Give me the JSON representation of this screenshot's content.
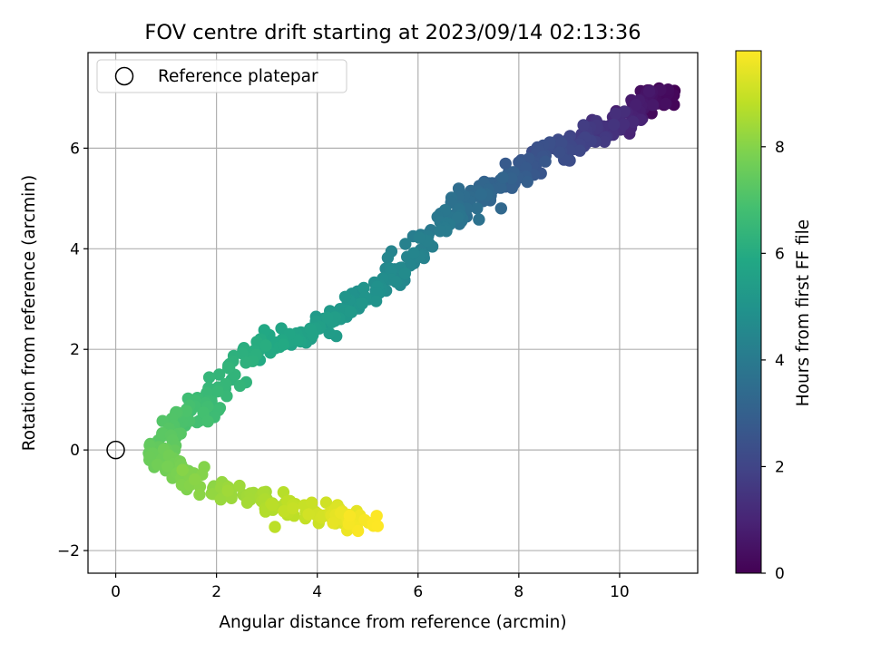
{
  "chart_data": {
    "type": "scatter",
    "title": "FOV centre drift starting at 2023/09/14 02:13:36",
    "xlabel": "Angular distance from reference (arcmin)",
    "ylabel": "Rotation from reference (arcmin)",
    "xlim": [
      -0.55,
      11.55
    ],
    "ylim": [
      -2.45,
      7.9
    ],
    "xticks": [
      0,
      2,
      4,
      6,
      8,
      10
    ],
    "yticks": [
      -2,
      0,
      2,
      4,
      6
    ],
    "xtick_labels": [
      "0",
      "2",
      "4",
      "6",
      "8",
      "10"
    ],
    "ytick_labels": [
      "−2",
      "0",
      "2",
      "4",
      "6"
    ],
    "grid": true,
    "legend": {
      "placement": "top-left",
      "entries": [
        "Reference platepar"
      ]
    },
    "reference_point": {
      "name": "Reference platepar",
      "x": 0,
      "y": 0
    },
    "colorbar": {
      "label": "Hours from first FF file",
      "colormap": "viridis",
      "range": [
        0,
        9.8
      ],
      "ticks": [
        0,
        2,
        4,
        6,
        8
      ],
      "tick_labels": [
        "0",
        "2",
        "4",
        "6",
        "8"
      ]
    },
    "color_variable": "hours_from_first_ff_file",
    "anchors": [
      {
        "t": 0.0,
        "x": 10.9,
        "y": 7.0
      },
      {
        "t": 0.5,
        "x": 10.6,
        "y": 7.0
      },
      {
        "t": 1.0,
        "x": 10.1,
        "y": 6.5
      },
      {
        "t": 1.5,
        "x": 9.6,
        "y": 6.4
      },
      {
        "t": 2.0,
        "x": 9.1,
        "y": 6.1
      },
      {
        "t": 2.5,
        "x": 8.4,
        "y": 5.8
      },
      {
        "t": 3.0,
        "x": 7.7,
        "y": 5.3
      },
      {
        "t": 3.5,
        "x": 7.0,
        "y": 4.9
      },
      {
        "t": 4.0,
        "x": 6.4,
        "y": 4.4
      },
      {
        "t": 4.5,
        "x": 5.6,
        "y": 3.6
      },
      {
        "t": 5.0,
        "x": 4.9,
        "y": 3.0
      },
      {
        "t": 5.5,
        "x": 4.0,
        "y": 2.3
      },
      {
        "t": 5.8,
        "x": 3.3,
        "y": 2.2
      },
      {
        "t": 6.2,
        "x": 2.5,
        "y": 1.8
      },
      {
        "t": 6.6,
        "x": 1.9,
        "y": 1.0
      },
      {
        "t": 7.0,
        "x": 1.3,
        "y": 0.6
      },
      {
        "t": 7.5,
        "x": 0.8,
        "y": 0.0
      },
      {
        "t": 7.9,
        "x": 1.4,
        "y": -0.5
      },
      {
        "t": 8.3,
        "x": 2.3,
        "y": -0.8
      },
      {
        "t": 8.7,
        "x": 3.2,
        "y": -1.2
      },
      {
        "t": 9.2,
        "x": 4.2,
        "y": -1.2
      },
      {
        "t": 9.8,
        "x": 5.0,
        "y": -1.5
      }
    ],
    "n_points": 640
  }
}
